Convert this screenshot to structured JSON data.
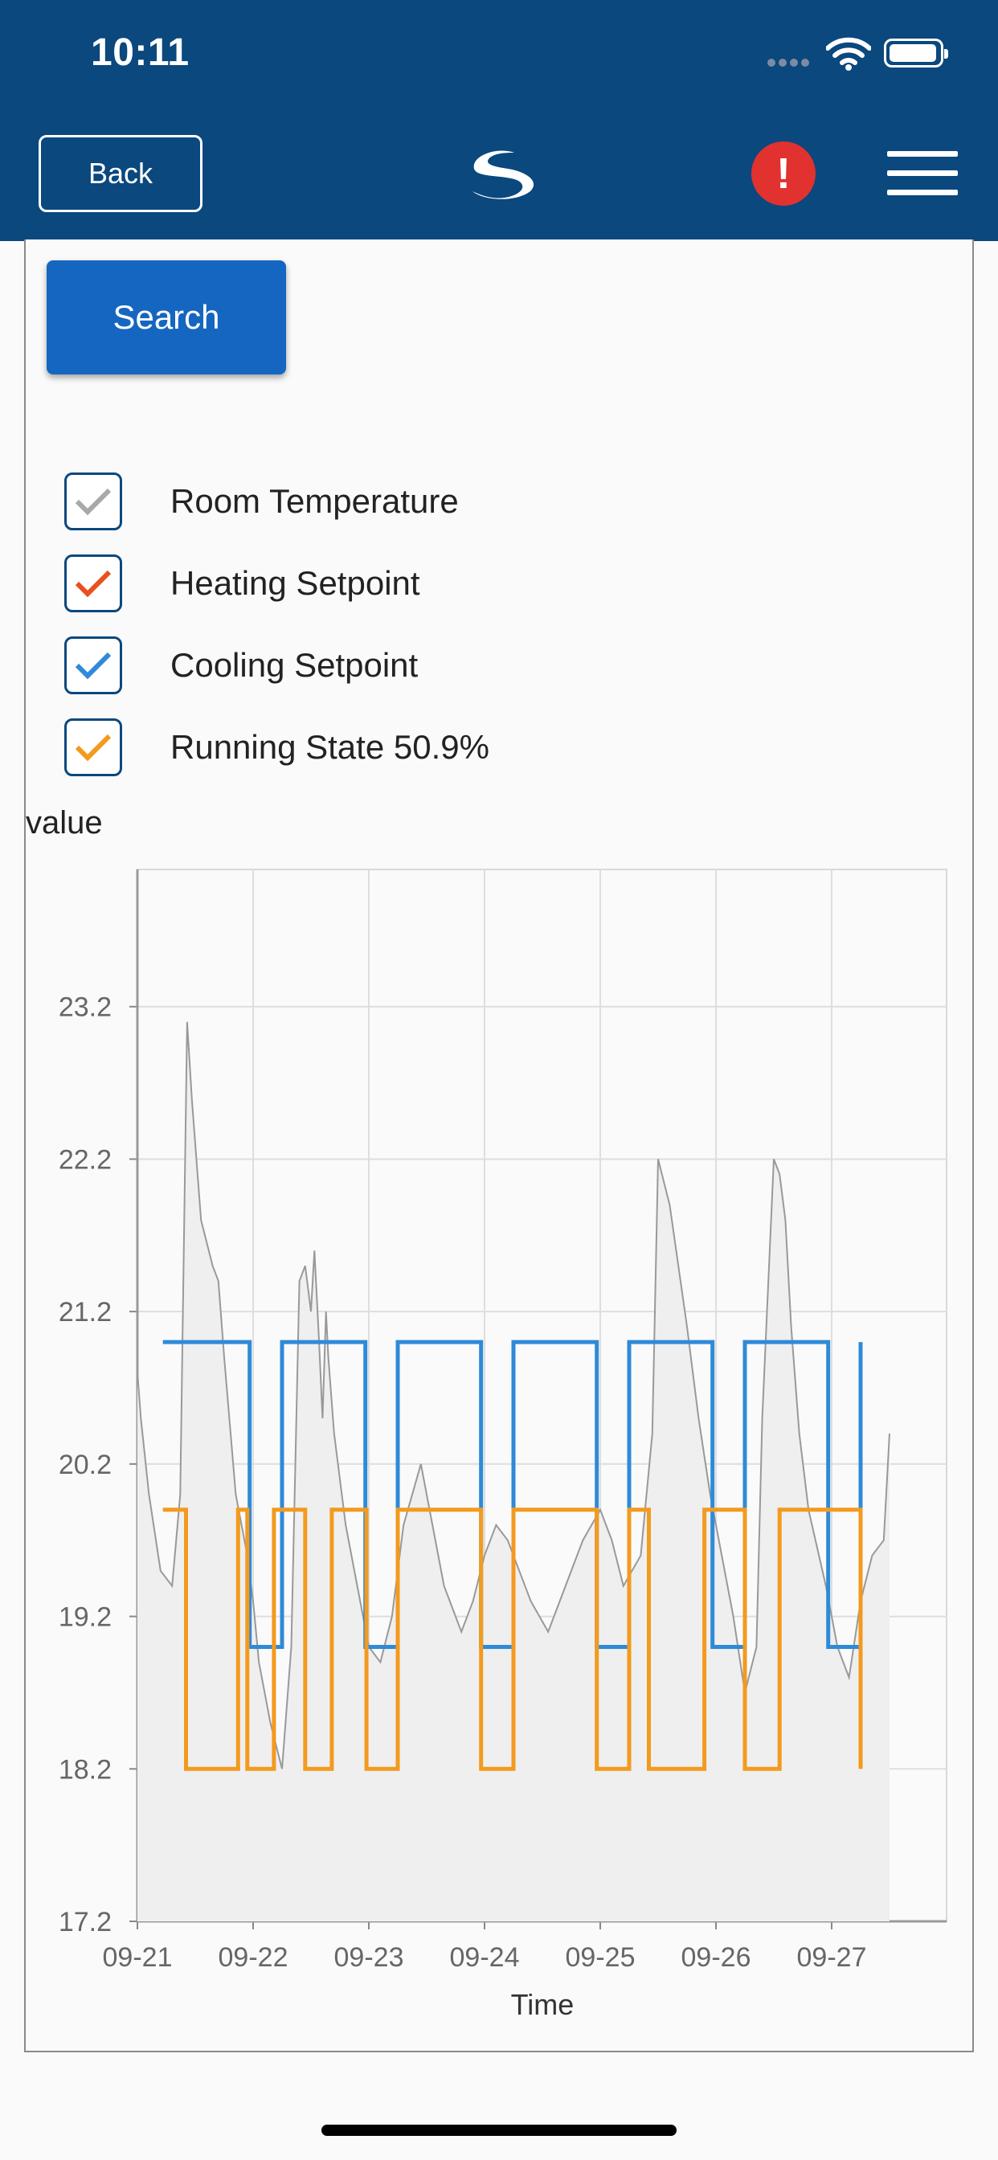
{
  "status_bar": {
    "time": "10:11"
  },
  "header": {
    "back_label": "Back",
    "alert_label": "!"
  },
  "search_label": "Search",
  "legend": [
    {
      "label": "Room Temperature",
      "color": "#a9a9a9"
    },
    {
      "label": "Heating Setpoint",
      "color": "#e8501e"
    },
    {
      "label": "Cooling Setpoint",
      "color": "#2f8ad8"
    },
    {
      "label": "Running State 50.9%",
      "color": "#f39a1e"
    }
  ],
  "chart_data": {
    "type": "line",
    "ylabel": "value",
    "xlabel": "Time",
    "ylim": [
      17.2,
      24.1
    ],
    "xlim": [
      "09-21",
      "09-28"
    ],
    "yticks": [
      "17.2",
      "18.2",
      "19.2",
      "20.2",
      "21.2",
      "22.2",
      "23.2"
    ],
    "xticks": [
      "09-21",
      "09-22",
      "09-23",
      "09-24",
      "09-25",
      "09-26",
      "09-27"
    ],
    "grid": true,
    "series": [
      {
        "name": "Room Temperature",
        "color": "#999999",
        "x": [
          0,
          0.03,
          0.1,
          0.2,
          0.3,
          0.37,
          0.43,
          0.47,
          0.5,
          0.55,
          0.65,
          0.7,
          0.75,
          0.85,
          0.95,
          1.0,
          1.05,
          1.15,
          1.25,
          1.33,
          1.4,
          1.45,
          1.5,
          1.53,
          1.55,
          1.57,
          1.6,
          1.63,
          1.65,
          1.7,
          1.8,
          1.9,
          2.0,
          2.1,
          2.2,
          2.3,
          2.45,
          2.55,
          2.65,
          2.8,
          2.9,
          3.0,
          3.1,
          3.2,
          3.3,
          3.4,
          3.55,
          3.7,
          3.85,
          4.0,
          4.1,
          4.2,
          4.35,
          4.45,
          4.5,
          4.6,
          4.75,
          4.85,
          4.95,
          5.05,
          5.15,
          5.25,
          5.35,
          5.4,
          5.5,
          5.55,
          5.6,
          5.65,
          5.72,
          5.8,
          5.95,
          6.05,
          6.15,
          6.25,
          6.35,
          6.45,
          6.5
        ],
        "y": [
          20.8,
          20.5,
          20.0,
          19.5,
          19.4,
          20.0,
          23.1,
          22.6,
          22.3,
          21.8,
          21.5,
          21.4,
          20.9,
          20.0,
          19.6,
          19.3,
          18.9,
          18.5,
          18.2,
          19.0,
          21.4,
          21.5,
          21.2,
          21.6,
          21.3,
          21.0,
          20.5,
          21.2,
          20.9,
          20.4,
          19.8,
          19.4,
          19.0,
          18.9,
          19.2,
          19.8,
          20.2,
          19.8,
          19.4,
          19.1,
          19.3,
          19.6,
          19.8,
          19.7,
          19.5,
          19.3,
          19.1,
          19.4,
          19.7,
          19.9,
          19.7,
          19.4,
          19.6,
          20.4,
          22.2,
          21.9,
          21.1,
          20.5,
          20.0,
          19.6,
          19.2,
          18.7,
          19.0,
          20.5,
          22.2,
          22.1,
          21.8,
          21.1,
          20.4,
          19.9,
          19.4,
          19.0,
          18.8,
          19.3,
          19.6,
          19.7,
          20.4
        ]
      },
      {
        "name": "Cooling Setpoint",
        "color": "#2f8ad8",
        "x": [
          0.22,
          0.97,
          0.97,
          1.25,
          1.25,
          1.97,
          1.97,
          2.25,
          2.25,
          2.97,
          2.97,
          3.25,
          3.25,
          3.97,
          3.97,
          4.25,
          4.25,
          4.97,
          4.97,
          5.25,
          5.25,
          5.97,
          5.97,
          6.25,
          6.25
        ],
        "y": [
          21.0,
          21.0,
          19.0,
          19.0,
          21.0,
          21.0,
          19.0,
          19.0,
          21.0,
          21.0,
          19.0,
          19.0,
          21.0,
          21.0,
          19.0,
          19.0,
          21.0,
          21.0,
          19.0,
          19.0,
          21.0,
          21.0,
          19.0,
          19.0,
          21.0
        ]
      },
      {
        "name": "Running State",
        "color": "#f39a1e",
        "x": [
          0.22,
          0.42,
          0.42,
          0.87,
          0.87,
          0.95,
          0.95,
          1.18,
          1.18,
          1.45,
          1.45,
          1.68,
          1.68,
          1.98,
          1.98,
          2.25,
          2.25,
          2.97,
          2.97,
          3.25,
          3.25,
          3.97,
          3.97,
          4.25,
          4.25,
          4.42,
          4.42,
          4.9,
          4.9,
          5.25,
          5.25,
          5.55,
          5.55,
          6.25,
          6.25
        ],
        "y": [
          19.9,
          19.9,
          18.2,
          18.2,
          19.9,
          19.9,
          18.2,
          18.2,
          19.9,
          19.9,
          18.2,
          18.2,
          19.9,
          19.9,
          18.2,
          18.2,
          19.9,
          19.9,
          18.2,
          18.2,
          19.9,
          19.9,
          18.2,
          18.2,
          19.9,
          19.9,
          18.2,
          18.2,
          19.9,
          19.9,
          18.2,
          18.2,
          19.9,
          19.9,
          18.2
        ]
      }
    ]
  }
}
